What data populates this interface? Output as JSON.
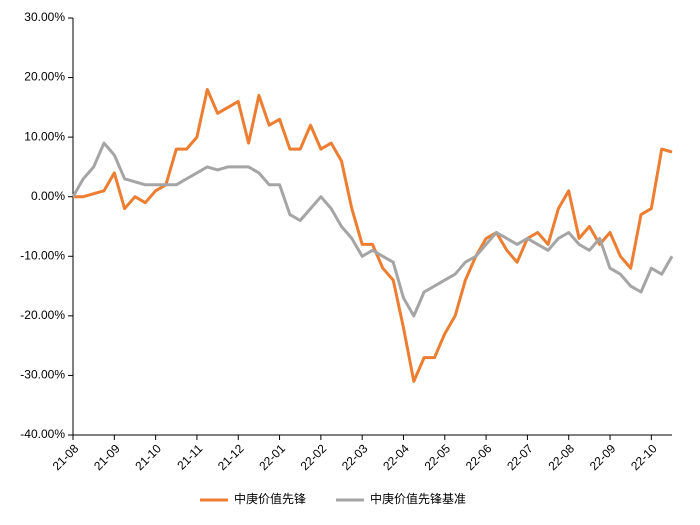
{
  "chart_data": {
    "type": "line",
    "categories": [
      "21-08",
      null,
      null,
      null,
      "21-09",
      null,
      null,
      null,
      "21-10",
      null,
      null,
      null,
      "21-11",
      null,
      null,
      null,
      "21-12",
      null,
      null,
      null,
      "22-01",
      null,
      null,
      null,
      "22-02",
      null,
      null,
      null,
      "22-03",
      null,
      null,
      null,
      "22-04",
      null,
      null,
      null,
      "22-05",
      null,
      null,
      null,
      "22-06",
      null,
      null,
      null,
      "22-07",
      null,
      null,
      null,
      "22-08",
      null,
      null,
      null,
      "22-09",
      null,
      null,
      null,
      "22-10",
      null,
      null
    ],
    "series": [
      {
        "name": "中庚价值先锋",
        "color": "#ed7d31",
        "values": [
          0,
          0,
          0.5,
          1,
          4,
          -2,
          0,
          -1,
          1,
          2,
          8,
          8,
          10,
          18,
          14,
          15,
          16,
          9,
          17,
          12,
          13,
          8,
          8,
          12,
          8,
          9,
          6,
          -2,
          -8,
          -8,
          -12,
          -14,
          -22,
          -31,
          -27,
          -27,
          -23,
          -20,
          -14,
          -10,
          -7,
          -6,
          -9,
          -11,
          -7,
          -6,
          -8,
          -2,
          1,
          -7,
          -5,
          -8,
          -6,
          -10,
          -12,
          -3,
          -2,
          8,
          7.5
        ]
      },
      {
        "name": "中庚价值先锋基准",
        "color": "#a5a5a5",
        "values": [
          0,
          3,
          5,
          9,
          7,
          3,
          2.5,
          2,
          2,
          2,
          2,
          3,
          4,
          5,
          4.5,
          5,
          5,
          5,
          4,
          2,
          2,
          -3,
          -4,
          -2,
          0,
          -2,
          -5,
          -7,
          -10,
          -9,
          -10,
          -11,
          -17,
          -20,
          -16,
          -15,
          -14,
          -13,
          -11,
          -10,
          -8,
          -6,
          -7,
          -8,
          -7,
          -8,
          -9,
          -7,
          -6,
          -8,
          -9,
          -7,
          -12,
          -13,
          -15,
          -16,
          -12,
          -13,
          -10
        ]
      }
    ],
    "ylim": [
      -40,
      30
    ],
    "yticks": [
      {
        "value": -40,
        "label": "-40.00%"
      },
      {
        "value": -30,
        "label": "-30.00%"
      },
      {
        "value": -20,
        "label": "-20.00%"
      },
      {
        "value": -10,
        "label": "-10.00%"
      },
      {
        "value": 0,
        "label": "0.00%"
      },
      {
        "value": 10,
        "label": "10.00%"
      },
      {
        "value": 20,
        "label": "20.00%"
      },
      {
        "value": 30,
        "label": "30.00%"
      }
    ],
    "grid": false,
    "legend": "bottom"
  }
}
